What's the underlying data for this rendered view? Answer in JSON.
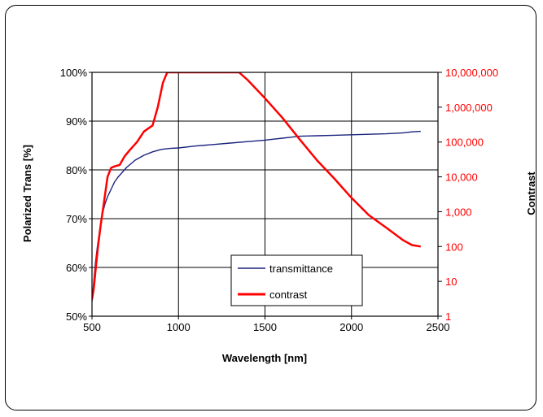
{
  "chart_data": {
    "type": "line",
    "xlabel": "Wavelength [nm]",
    "ylabel": "Polarized Trans [%]",
    "y2label": "Contrast",
    "xlim": [
      500,
      2500
    ],
    "xticks": [
      500,
      1000,
      1500,
      2000,
      2500
    ],
    "xtick_labels": [
      "500",
      "1000",
      "1500",
      "2000",
      "2500"
    ],
    "ylim": [
      50,
      100
    ],
    "yticks": [
      50,
      60,
      70,
      80,
      90,
      100
    ],
    "ytick_labels": [
      "50%",
      "60%",
      "70%",
      "80%",
      "90%",
      "100%"
    ],
    "y2scale": "log",
    "y2lim": [
      1,
      10000000
    ],
    "y2ticks": [
      1,
      10,
      100,
      1000,
      10000,
      100000,
      1000000,
      10000000
    ],
    "y2tick_labels": [
      "1",
      "10",
      "100",
      "1,000",
      "10,000",
      "100,000",
      "1,000,000",
      "10,000,000"
    ],
    "grid": true,
    "legend_position": "bottom-center",
    "colors": {
      "transmittance": "#1a237e",
      "contrast": "#ff0000",
      "y2_axis_text": "#ff0000"
    },
    "series": [
      {
        "name": "transmittance",
        "axis": "left",
        "x": [
          500,
          510,
          520,
          530,
          540,
          550,
          560,
          575,
          590,
          610,
          630,
          650,
          675,
          700,
          750,
          800,
          850,
          900,
          950,
          1000,
          1100,
          1200,
          1300,
          1400,
          1500,
          1550,
          1600,
          1650,
          1700,
          1800,
          1900,
          2000,
          2100,
          2200,
          2300,
          2350,
          2400
        ],
        "y": [
          53,
          57,
          61,
          64,
          66.5,
          69,
          71,
          73,
          74.5,
          76,
          77.5,
          78.5,
          79.5,
          80.5,
          82,
          83,
          83.7,
          84.2,
          84.4,
          84.5,
          84.9,
          85.2,
          85.5,
          85.8,
          86.1,
          86.3,
          86.5,
          86.7,
          86.9,
          87.0,
          87.1,
          87.2,
          87.3,
          87.4,
          87.6,
          87.8,
          87.9
        ]
      },
      {
        "name": "contrast",
        "axis": "right",
        "x": [
          500,
          510,
          520,
          535,
          550,
          570,
          590,
          610,
          630,
          660,
          690,
          720,
          760,
          800,
          850,
          880,
          910,
          935,
          1350,
          1400,
          1500,
          1600,
          1700,
          1800,
          1900,
          2000,
          2100,
          2200,
          2300,
          2350,
          2400
        ],
        "y": [
          3,
          6,
          20,
          100,
          400,
          2000,
          10000,
          18000,
          20000,
          22000,
          40000,
          60000,
          100000,
          200000,
          300000,
          1000000,
          5000000,
          10000000,
          10000000,
          6000000,
          1800000,
          500000,
          120000,
          30000,
          9000,
          2500,
          800,
          350,
          150,
          110,
          100
        ]
      }
    ]
  }
}
